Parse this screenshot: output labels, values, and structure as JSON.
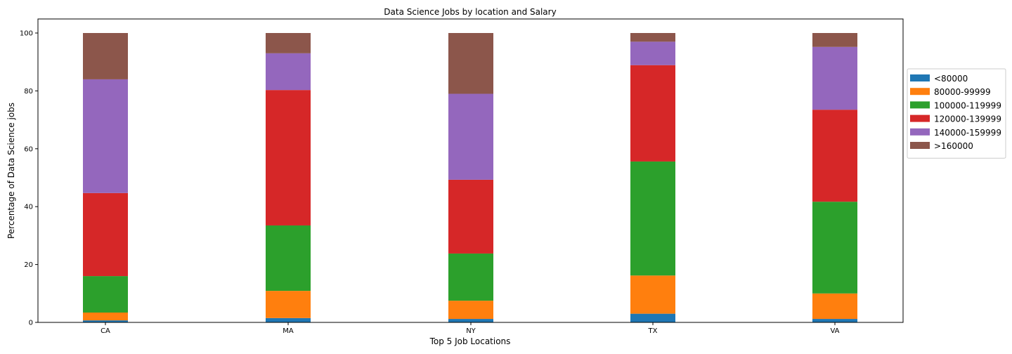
{
  "chart_data": {
    "type": "bar",
    "stacked": true,
    "title": "Data Science Jobs by location and Salary",
    "xlabel": "Top 5 Job Locations",
    "ylabel": "Percentage of Data Science jobs",
    "ylim": [
      0,
      100
    ],
    "yticks": [
      "0",
      "20",
      "40",
      "60",
      "80",
      "100"
    ],
    "grid": false,
    "legend_position": "right",
    "categories": [
      "CA",
      "MA",
      "NY",
      "TX",
      "VA"
    ],
    "series": [
      {
        "name": "<80000",
        "color": "#1f77b4",
        "values": [
          0.7,
          1.5,
          1.2,
          3.0,
          1.2
        ]
      },
      {
        "name": "80000-99999",
        "color": "#ff7f0e",
        "values": [
          2.7,
          9.4,
          6.3,
          13.2,
          8.8
        ]
      },
      {
        "name": "100000-119999",
        "color": "#2ca02c",
        "values": [
          12.6,
          22.6,
          16.3,
          39.4,
          31.7
        ]
      },
      {
        "name": "120000-139999",
        "color": "#d62728",
        "values": [
          28.7,
          46.8,
          25.5,
          33.3,
          31.8
        ]
      },
      {
        "name": "140000-159999",
        "color": "#9467bd",
        "values": [
          39.3,
          12.7,
          29.7,
          8.1,
          21.7
        ]
      },
      {
        "name": ">160000",
        "color": "#8c564b",
        "values": [
          16.0,
          7.0,
          21.0,
          3.0,
          4.8
        ]
      }
    ]
  }
}
